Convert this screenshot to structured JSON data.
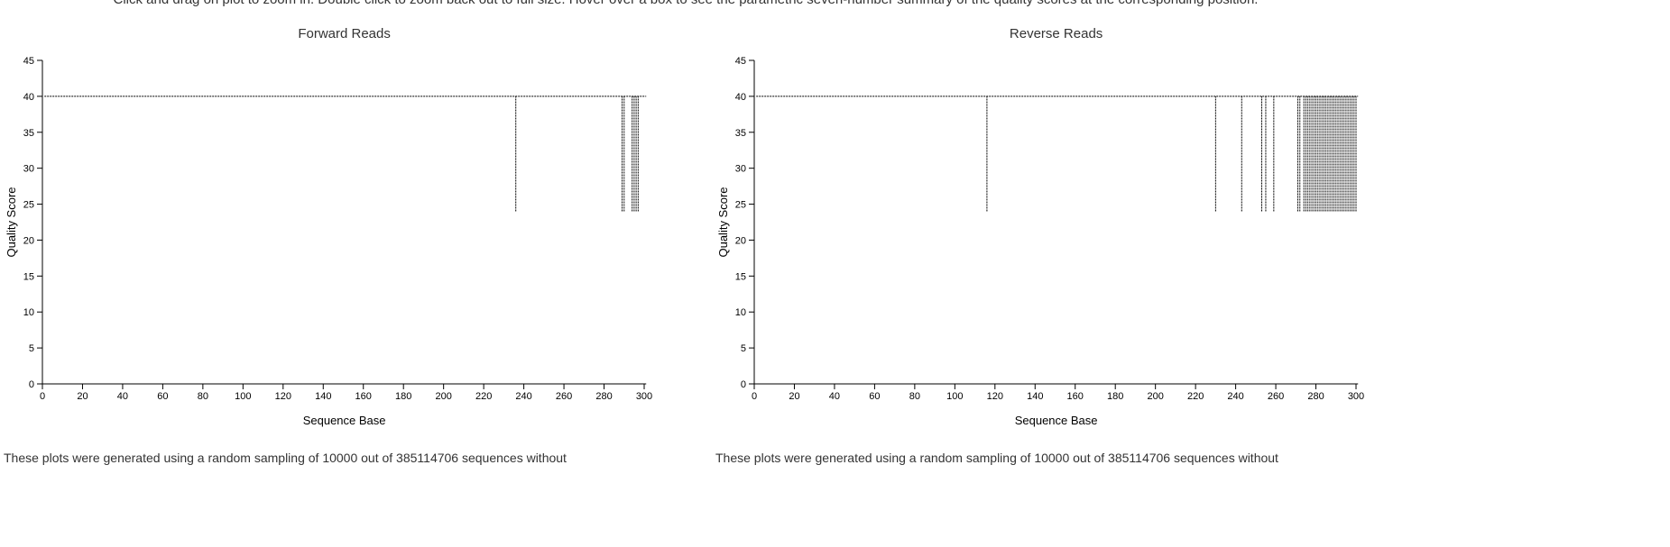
{
  "instructions": "Click and drag on plot to zoom in. Double click to zoom back out to full size. Hover over a box to see the parametric seven-number summary of the quality scores at the corresponding position.",
  "chart_data": [
    {
      "type": "box",
      "title": "Forward Reads",
      "x_label": "Sequence Base",
      "y_label": "Quality Score",
      "xlim": [
        0,
        301
      ],
      "ylim": [
        0,
        45
      ],
      "xticks": [
        0,
        20,
        40,
        60,
        80,
        100,
        120,
        140,
        160,
        180,
        200,
        220,
        240,
        260,
        280,
        300
      ],
      "yticks": [
        0,
        5,
        10,
        15,
        20,
        25,
        30,
        35,
        40,
        45
      ],
      "line": {
        "x": [
          1,
          301
        ],
        "values": [
          40,
          40
        ]
      },
      "x": [
        236,
        289,
        290,
        294,
        295,
        296,
        297
      ],
      "low": [
        24,
        24,
        24,
        24,
        24,
        24,
        24
      ],
      "high": [
        40,
        40,
        40,
        40,
        40,
        40,
        40
      ]
    },
    {
      "type": "box",
      "title": "Reverse Reads",
      "x_label": "Sequence Base",
      "y_label": "Quality Score",
      "xlim": [
        0,
        301
      ],
      "ylim": [
        0,
        45
      ],
      "xticks": [
        0,
        20,
        40,
        60,
        80,
        100,
        120,
        140,
        160,
        180,
        200,
        220,
        240,
        260,
        280,
        300
      ],
      "yticks": [
        0,
        5,
        10,
        15,
        20,
        25,
        30,
        35,
        40,
        45
      ],
      "line": {
        "x": [
          1,
          301
        ],
        "values": [
          40,
          40
        ]
      },
      "x": [
        116,
        230,
        243,
        253,
        255,
        259,
        271,
        272,
        274,
        275,
        276,
        277,
        278,
        279,
        280,
        281,
        282,
        283,
        284,
        285,
        286,
        287,
        288,
        289,
        290,
        291,
        292,
        293,
        294,
        295,
        296,
        297,
        298,
        299,
        300
      ],
      "low": [
        24,
        24,
        24,
        24,
        24,
        24,
        24,
        24,
        24,
        24,
        24,
        24,
        24,
        24,
        24,
        24,
        24,
        24,
        24,
        24,
        24,
        24,
        24,
        24,
        24,
        24,
        24,
        24,
        24,
        24,
        24,
        24,
        24,
        24,
        24
      ],
      "high": [
        40,
        40,
        40,
        40,
        40,
        40,
        40,
        40,
        40,
        40,
        40,
        40,
        40,
        40,
        40,
        40,
        40,
        40,
        40,
        40,
        40,
        40,
        40,
        40,
        40,
        40,
        40,
        40,
        40,
        40,
        40,
        40,
        40,
        40,
        40
      ]
    }
  ],
  "notes": [
    "These plots were generated using a random sampling of 10000 out of 385114706 sequences without",
    "These plots were generated using a random sampling of 10000 out of 385114706 sequences without"
  ]
}
